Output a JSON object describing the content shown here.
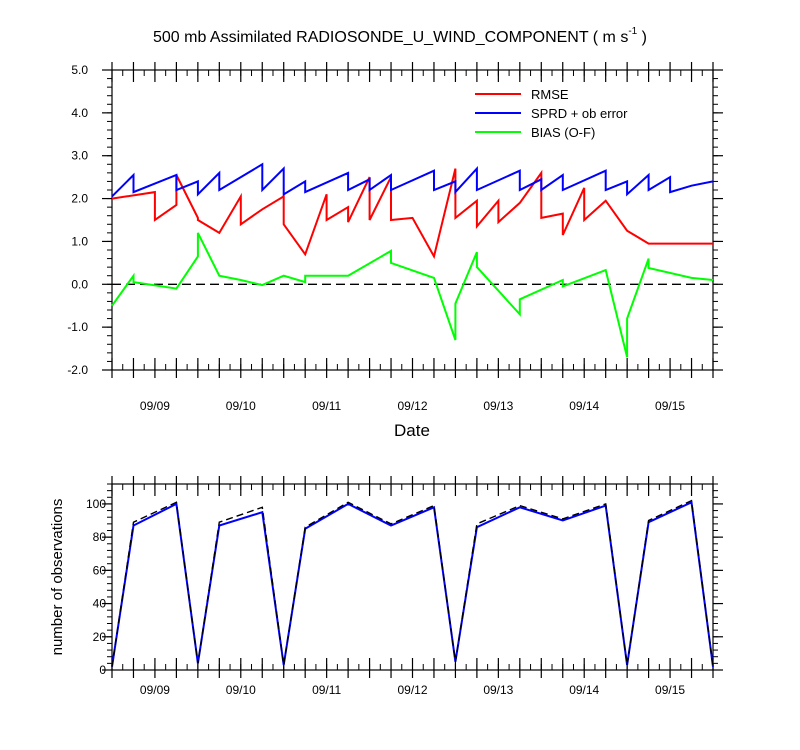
{
  "title": {
    "main": "500 mb Assimilated RADIOSONDE_U_WIND_COMPONENT ( m s",
    "sup": "-1",
    "close": " )"
  },
  "chart_data": [
    {
      "type": "line",
      "xlabel": "Date",
      "ylabel": "",
      "xlim": [
        0,
        14
      ],
      "ylim": [
        -2.0,
        5.0
      ],
      "yticks": [
        "5.0",
        "4.0",
        "3.0",
        "2.0",
        "1.0",
        "0.0",
        "-1.0",
        "-2.0"
      ],
      "ytick_values": [
        5,
        4,
        3,
        2,
        1,
        0,
        -1,
        -2
      ],
      "x_tick_labels": [
        "09/09",
        "09/10",
        "09/11",
        "09/12",
        "09/13",
        "09/14",
        "09/15"
      ],
      "x_tick_values": [
        1,
        3,
        5,
        7,
        9,
        11,
        13
      ],
      "zero_line": true,
      "legend": "top-right",
      "series": [
        {
          "name": "RMSE",
          "color": "#ff0000",
          "x": [
            0,
            1,
            1,
            1.5,
            1.5,
            2,
            2,
            2.5,
            2.5,
            3,
            3,
            3.5,
            3.5,
            4,
            4,
            4.5,
            4.5,
            5,
            5,
            5.5,
            5.5,
            6,
            6,
            6.5,
            6.5,
            7,
            7,
            7.5,
            7.5,
            8,
            8,
            8.5,
            8.5,
            9,
            9,
            9.5,
            9.5,
            10,
            10,
            10.5,
            10.5,
            11,
            11,
            11.5,
            11.5,
            12,
            12,
            12.5,
            12.5,
            13,
            13,
            13.5,
            13.5,
            14,
            14
          ],
          "y": [
            2.0,
            2.15,
            1.5,
            1.85,
            2.55,
            1.55,
            1.5,
            1.2,
            1.2,
            2.05,
            1.4,
            1.75,
            1.75,
            2.05,
            1.4,
            0.7,
            0.7,
            2.1,
            1.5,
            1.8,
            1.45,
            2.5,
            1.5,
            2.5,
            1.5,
            1.55,
            1.55,
            0.65,
            0.65,
            2.7,
            1.55,
            1.95,
            1.35,
            1.95,
            1.45,
            1.9,
            1.9,
            2.6,
            1.55,
            1.65,
            1.15,
            2.25,
            1.5,
            1.95,
            1.95,
            1.25,
            1.25,
            0.95,
            0.95,
            0.95,
            0.95,
            0.95,
            0.95,
            0.95,
            0.95
          ]
        },
        {
          "name": "SPRD + ob error",
          "color": "#0000ff",
          "x": [
            0,
            0.5,
            0.5,
            1.5,
            1.5,
            2,
            2,
            2.5,
            2.5,
            3.5,
            3.5,
            4,
            4,
            4.5,
            4.5,
            5.5,
            5.5,
            6,
            6,
            6.5,
            6.5,
            7.5,
            7.5,
            8,
            8,
            8.5,
            8.5,
            9.5,
            9.5,
            10,
            10,
            10.5,
            10.5,
            11.5,
            11.5,
            12,
            12,
            12.5,
            12.5,
            13,
            13,
            13.5,
            13.5,
            14
          ],
          "y": [
            2.05,
            2.55,
            2.15,
            2.55,
            2.2,
            2.4,
            2.1,
            2.6,
            2.2,
            2.8,
            2.2,
            2.7,
            2.1,
            2.4,
            2.15,
            2.6,
            2.2,
            2.45,
            2.2,
            2.55,
            2.2,
            2.65,
            2.2,
            2.4,
            2.15,
            2.7,
            2.2,
            2.65,
            2.2,
            2.45,
            2.2,
            2.55,
            2.2,
            2.65,
            2.2,
            2.4,
            2.1,
            2.55,
            2.2,
            2.5,
            2.15,
            2.3,
            2.3,
            2.4
          ]
        },
        {
          "name": "BIAS (O-F)",
          "color": "#00ff00",
          "x": [
            0,
            0.5,
            0.5,
            1.5,
            2,
            2,
            2.5,
            2.5,
            3,
            3.5,
            4,
            4.5,
            4.5,
            5.5,
            5.5,
            6.5,
            6.5,
            7.5,
            8,
            8,
            8.5,
            8.5,
            9.5,
            9.5,
            10.5,
            10.5,
            11.5,
            12,
            12,
            12.5,
            12.5,
            13.5,
            13.5,
            14
          ],
          "y": [
            -0.5,
            0.2,
            0.05,
            -0.1,
            0.65,
            1.2,
            0.2,
            0.2,
            0.1,
            -0.02,
            0.2,
            0.05,
            0.2,
            0.2,
            0.2,
            0.78,
            0.5,
            0.15,
            -1.3,
            -0.45,
            0.75,
            0.4,
            -0.7,
            -0.35,
            0.1,
            -0.05,
            0.33,
            -1.7,
            -0.8,
            0.6,
            0.38,
            0.15,
            0.15,
            0.1
          ]
        }
      ]
    },
    {
      "type": "line",
      "xlabel": "",
      "ylabel": "number of observations",
      "xlim": [
        0,
        14
      ],
      "ylim": [
        0,
        112
      ],
      "yticks": [
        "0",
        "20",
        "40",
        "60",
        "80",
        "100"
      ],
      "ytick_values": [
        0,
        20,
        40,
        60,
        80,
        100
      ],
      "x_tick_labels": [
        "09/09",
        "09/10",
        "09/11",
        "09/12",
        "09/13",
        "09/14",
        "09/15"
      ],
      "x_tick_values": [
        1,
        3,
        5,
        7,
        9,
        11,
        13
      ],
      "series": [
        {
          "color": "#0000ff",
          "style": "solid",
          "x": [
            0,
            0.5,
            1.5,
            2,
            2.5,
            3.5,
            4,
            4.5,
            5.5,
            6.5,
            7.5,
            8,
            8.5,
            9.5,
            10.5,
            11.5,
            12,
            12.5,
            13.5,
            14
          ],
          "y": [
            2,
            87,
            100,
            4,
            87,
            95,
            3,
            85,
            100,
            87,
            98,
            5,
            86,
            98,
            90,
            99,
            3,
            89,
            101,
            2
          ]
        },
        {
          "color": "#000000",
          "style": "dashed",
          "x": [
            0,
            0.5,
            1.5,
            2,
            2.5,
            3.5,
            4,
            4.5,
            5.5,
            6.5,
            7.5,
            8,
            8.5,
            9.5,
            10.5,
            11.5,
            12,
            12.5,
            13.5,
            14
          ],
          "y": [
            2,
            89,
            101,
            4,
            89,
            98,
            3,
            86,
            101,
            88,
            99,
            5,
            88,
            99,
            91,
            100,
            3,
            90,
            102,
            2
          ]
        }
      ]
    }
  ]
}
